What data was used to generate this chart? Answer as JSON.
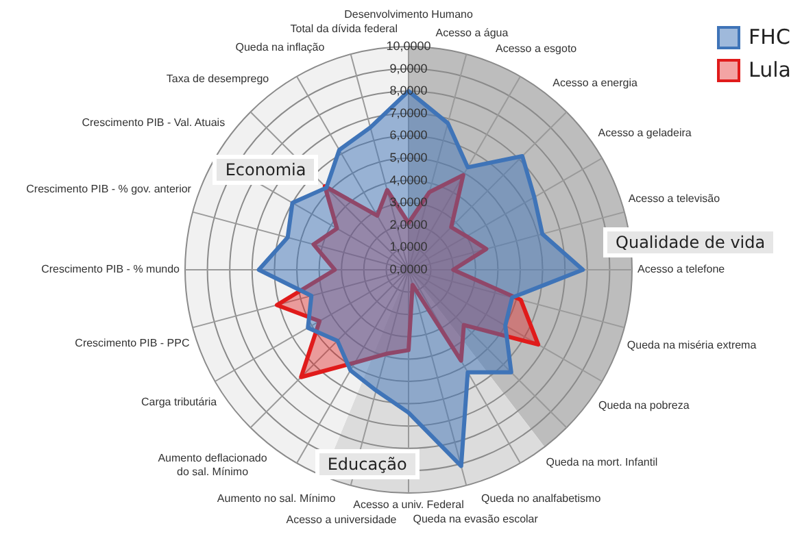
{
  "chart_data": {
    "type": "radar",
    "categories": [
      "Desenvolvimento Humano",
      "Acesso a água",
      "Acesso a esgoto",
      "Acesso a energia",
      "Acesso a geladeira",
      "Acesso a televisão",
      "Acesso a telefone",
      "Queda na miséria extrema",
      "Queda na pobreza",
      "Queda na mort. Infantil",
      "Queda no analfabetismo",
      "Queda na evasão escolar",
      "Acesso a univ. Federal",
      "Acesso a universidade",
      "Aumento no sal. Mínimo",
      "Aumento deflacionado do sal. Mínimo",
      "Carga tributária",
      "Crescimento PIB - PPC",
      "Crescimento PIB - % mundo",
      "Crescimento PIB - % gov. anterior",
      "Crescimento PIB - Val. Atuais",
      "Taxa de desemprego",
      "Queda na inflação",
      "Total da dívida federal"
    ],
    "series": [
      {
        "name": "FHC",
        "color": "#3f74b8",
        "values": [
          8.0,
          6.8,
          5.3,
          7.2,
          6.5,
          6.2,
          7.8,
          4.8,
          5.0,
          6.5,
          5.3,
          9.1,
          6.4,
          5.6,
          5.2,
          4.5,
          5.2,
          4.5,
          6.7,
          5.6,
          6.0,
          5.2,
          6.2,
          6.6
        ]
      },
      {
        "name": "Lula",
        "color": "#e01b1b",
        "values": [
          2.1,
          3.6,
          4.9,
          2.7,
          3.0,
          3.6,
          2.0,
          5.2,
          6.7,
          3.5,
          4.7,
          0.7,
          3.6,
          3.9,
          4.8,
          6.8,
          4.6,
          6.1,
          3.3,
          4.4,
          3.7,
          5.3,
          2.8,
          3.7
        ]
      }
    ],
    "ylim": [
      0,
      10
    ],
    "yticks": [
      {
        "value": 0,
        "label": "0,0000"
      },
      {
        "value": 1,
        "label": "1,0000"
      },
      {
        "value": 2,
        "label": "2,0000"
      },
      {
        "value": 3,
        "label": "3,0000"
      },
      {
        "value": 4,
        "label": "4,0000"
      },
      {
        "value": 5,
        "label": "5,0000"
      },
      {
        "value": 6,
        "label": "6,0000"
      },
      {
        "value": 7,
        "label": "7,0000"
      },
      {
        "value": 8,
        "label": "8,0000"
      },
      {
        "value": 9,
        "label": "9,0000"
      },
      {
        "value": 10,
        "label": "10,0000"
      }
    ],
    "annotations": [
      "Economia",
      "Qualidade de vida",
      "Educação"
    ],
    "grid": true,
    "legend": "top right",
    "marker": "none"
  }
}
